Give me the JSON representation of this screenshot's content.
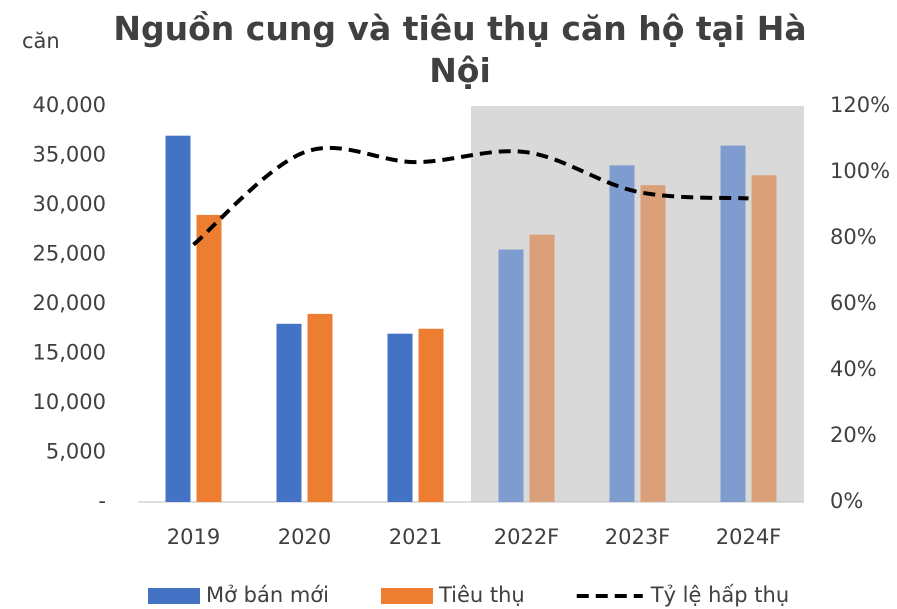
{
  "chart_data": {
    "type": "bar",
    "title": "Nguồn cung và tiêu thụ căn hộ tại Hà Nội",
    "y_label": "căn",
    "categories": [
      "2019",
      "2020",
      "2021",
      "2022F",
      "2023F",
      "2024F"
    ],
    "series": [
      {
        "name": "Mở bán mới",
        "type": "bar",
        "color": "#4472c4",
        "point_colors": [
          "#4472c4",
          "#4472c4",
          "#4472c4",
          "#7f9ccf",
          "#7f9ccf",
          "#7f9ccf"
        ],
        "values": [
          37000,
          18000,
          17000,
          25500,
          34000,
          36000
        ]
      },
      {
        "name": "Tiêu thụ",
        "type": "bar",
        "color": "#ed7d31",
        "point_colors": [
          "#ed7d31",
          "#ed7d31",
          "#ed7d31",
          "#d9a07a",
          "#d9a07a",
          "#d9a07a"
        ],
        "values": [
          29000,
          19000,
          17500,
          27000,
          32000,
          33000
        ]
      },
      {
        "name": "Tỷ lệ hấp thụ",
        "type": "line",
        "axis": "y2",
        "color": "#000000",
        "dashed": true,
        "smooth": true,
        "values": [
          78,
          106,
          103,
          106,
          94,
          92
        ]
      }
    ],
    "ylim": [
      0,
      40000
    ],
    "yticks": [
      {
        "value": 0,
        "label": "-"
      },
      {
        "value": 5000,
        "label": "5,000"
      },
      {
        "value": 10000,
        "label": "10,000"
      },
      {
        "value": 15000,
        "label": "15,000"
      },
      {
        "value": 20000,
        "label": "20,000"
      },
      {
        "value": 25000,
        "label": "25,000"
      },
      {
        "value": 30000,
        "label": "30,000"
      },
      {
        "value": 35000,
        "label": "35,000"
      },
      {
        "value": 40000,
        "label": "40,000"
      }
    ],
    "y2lim": [
      0,
      120
    ],
    "y2ticks": [
      {
        "value": 0,
        "label": "0%"
      },
      {
        "value": 20,
        "label": "20%"
      },
      {
        "value": 40,
        "label": "40%"
      },
      {
        "value": 60,
        "label": "60%"
      },
      {
        "value": 80,
        "label": "80%"
      },
      {
        "value": 100,
        "label": "100%"
      },
      {
        "value": 120,
        "label": "120%"
      }
    ],
    "forecast_band": {
      "from": "2022F",
      "to": "2024F",
      "color": "#d9d9d9"
    },
    "grid": false,
    "legend": "bottom"
  }
}
